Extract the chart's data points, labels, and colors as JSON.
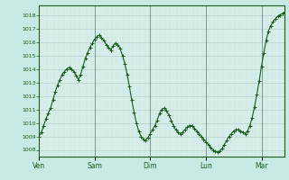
{
  "background_color": "#c8eae4",
  "plot_bg_color": "#d8f0ec",
  "line_color": "#1a5c1a",
  "marker": "+",
  "marker_size": 2.5,
  "line_width": 0.8,
  "ylim": [
    1007.5,
    1018.7
  ],
  "yticks": [
    1008,
    1009,
    1010,
    1011,
    1012,
    1013,
    1014,
    1015,
    1016,
    1017,
    1018
  ],
  "day_labels": [
    "Ven",
    "Sam",
    "Dim",
    "Lun",
    "Mar"
  ],
  "day_positions": [
    0,
    48,
    96,
    144,
    192
  ],
  "xlim": [
    0,
    212
  ],
  "grid_color": "#b0ccc8",
  "minor_grid_color": "#c4ddd8",
  "major_vgrid_color": "#7a9a94",
  "x_points": [
    0,
    2,
    4,
    6,
    8,
    10,
    12,
    14,
    16,
    18,
    20,
    22,
    24,
    26,
    28,
    30,
    32,
    34,
    36,
    38,
    40,
    42,
    44,
    46,
    48,
    50,
    52,
    54,
    56,
    58,
    60,
    62,
    64,
    66,
    68,
    70,
    72,
    74,
    76,
    78,
    80,
    82,
    84,
    86,
    88,
    90,
    92,
    94,
    96,
    98,
    100,
    102,
    104,
    106,
    108,
    110,
    112,
    114,
    116,
    118,
    120,
    122,
    124,
    126,
    128,
    130,
    132,
    134,
    136,
    138,
    140,
    142,
    144,
    146,
    148,
    150,
    152,
    154,
    156,
    158,
    160,
    162,
    164,
    166,
    168,
    170,
    172,
    174,
    176,
    178,
    180,
    182,
    184,
    186,
    188,
    190,
    192,
    194,
    196,
    198,
    200,
    202,
    204,
    206,
    208,
    210,
    212
  ],
  "y_points": [
    1009.0,
    1009.3,
    1009.8,
    1010.3,
    1010.7,
    1011.1,
    1011.7,
    1012.3,
    1012.8,
    1013.2,
    1013.6,
    1013.8,
    1014.0,
    1014.1,
    1014.0,
    1013.8,
    1013.5,
    1013.2,
    1013.6,
    1014.2,
    1014.8,
    1015.2,
    1015.6,
    1015.9,
    1016.2,
    1016.4,
    1016.5,
    1016.3,
    1016.1,
    1015.8,
    1015.6,
    1015.4,
    1015.7,
    1015.9,
    1015.8,
    1015.5,
    1015.0,
    1014.4,
    1013.6,
    1012.7,
    1011.7,
    1010.8,
    1010.0,
    1009.4,
    1009.0,
    1008.8,
    1008.7,
    1008.9,
    1009.2,
    1009.5,
    1009.8,
    1010.2,
    1010.7,
    1011.0,
    1011.1,
    1010.9,
    1010.6,
    1010.2,
    1009.8,
    1009.5,
    1009.3,
    1009.2,
    1009.3,
    1009.5,
    1009.7,
    1009.8,
    1009.8,
    1009.6,
    1009.4,
    1009.2,
    1009.0,
    1008.8,
    1008.6,
    1008.4,
    1008.2,
    1008.0,
    1007.9,
    1007.85,
    1007.9,
    1008.1,
    1008.4,
    1008.7,
    1009.0,
    1009.2,
    1009.4,
    1009.5,
    1009.5,
    1009.4,
    1009.3,
    1009.2,
    1009.4,
    1009.8,
    1010.4,
    1011.2,
    1012.1,
    1013.1,
    1014.2,
    1015.2,
    1016.1,
    1016.8,
    1017.2,
    1017.5,
    1017.7,
    1017.9,
    1018.0,
    1018.1,
    1018.2
  ]
}
